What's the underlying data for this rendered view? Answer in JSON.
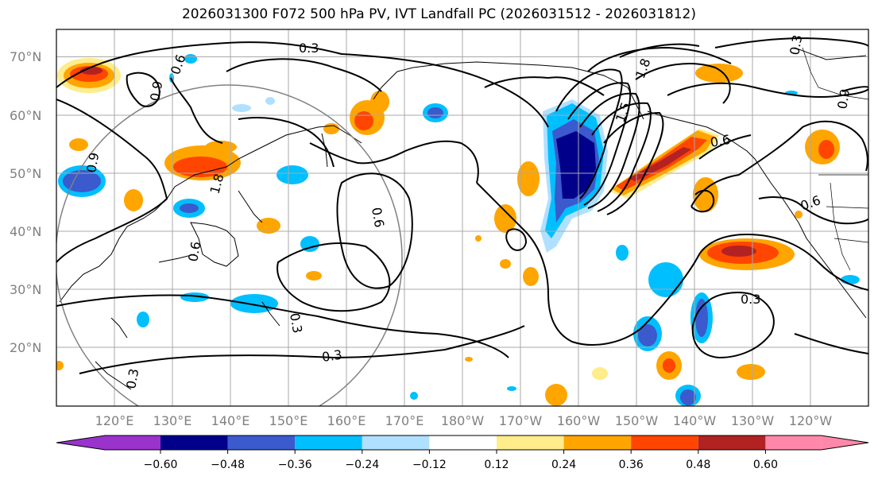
{
  "title": "2026031300 F072 500 hPa PV, IVT Landfall PC (2026031512 - 2026031812)",
  "lat_labels": [
    "70°N",
    "60°N",
    "50°N",
    "40°N",
    "30°N",
    "20°N"
  ],
  "lon_labels": [
    "120°E",
    "130°E",
    "140°E",
    "150°E",
    "160°E",
    "170°E",
    "180°W",
    "170°W",
    "160°W",
    "150°W",
    "140°W",
    "130°W",
    "120°W"
  ],
  "colorbar": {
    "colors": [
      "#9933cc",
      "#00008b",
      "#3a5acd",
      "#00bfff",
      "#b0e0ff",
      "#ffffff",
      "#ffec8b",
      "#ffa500",
      "#ff4500",
      "#b22222",
      "#ff88aa"
    ],
    "labels": [
      "−0.60",
      "−0.48",
      "−0.36",
      "−0.24",
      "−0.12",
      "0.12",
      "0.24",
      "0.36",
      "0.48",
      "0.60"
    ]
  },
  "contour_labels": [
    "0.3",
    "0.6",
    "0.9",
    "0.9",
    "1.8",
    "1.5",
    "1.8",
    "0.3",
    "0.6",
    "0.6",
    "0.3",
    "0.3",
    "0.9",
    "0.6",
    "0.6",
    "0.3",
    "0.3"
  ]
}
